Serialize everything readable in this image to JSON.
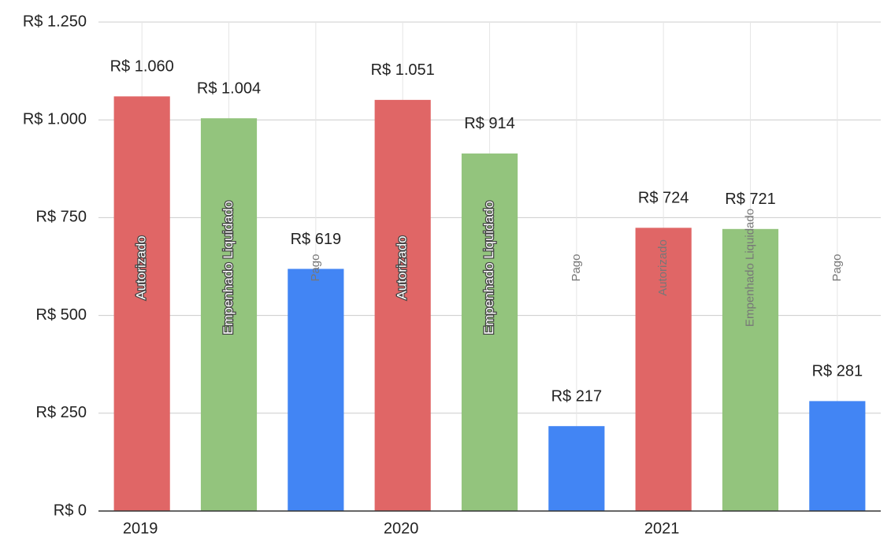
{
  "chart_data": {
    "type": "bar",
    "categories": [
      "2019",
      "2020",
      "2021"
    ],
    "series": [
      {
        "name": "Autorizado",
        "color": "#e06666",
        "values": [
          1060,
          1051,
          724
        ],
        "value_labels": [
          "R$ 1.060",
          "R$ 1.051",
          "R$ 724"
        ]
      },
      {
        "name": "Empenhado Liquidado",
        "color": "#93c47d",
        "values": [
          1004,
          914,
          721
        ],
        "value_labels": [
          "R$ 1.004",
          "R$ 914",
          "R$ 721"
        ]
      },
      {
        "name": "Pago",
        "color": "#4285f4",
        "values": [
          619,
          217,
          281
        ],
        "value_labels": [
          "R$ 619",
          "R$ 217",
          "R$ 281"
        ]
      }
    ],
    "ylim": [
      0,
      1250
    ],
    "yticks": [
      {
        "value": 0,
        "label": "R$ 0"
      },
      {
        "value": 250,
        "label": "R$ 250"
      },
      {
        "value": 500,
        "label": "R$ 500"
      },
      {
        "value": 750,
        "label": "R$ 750"
      },
      {
        "value": 1000,
        "label": "R$ 1.000"
      },
      {
        "value": 1250,
        "label": "R$ 1.250"
      }
    ],
    "grid": true
  }
}
